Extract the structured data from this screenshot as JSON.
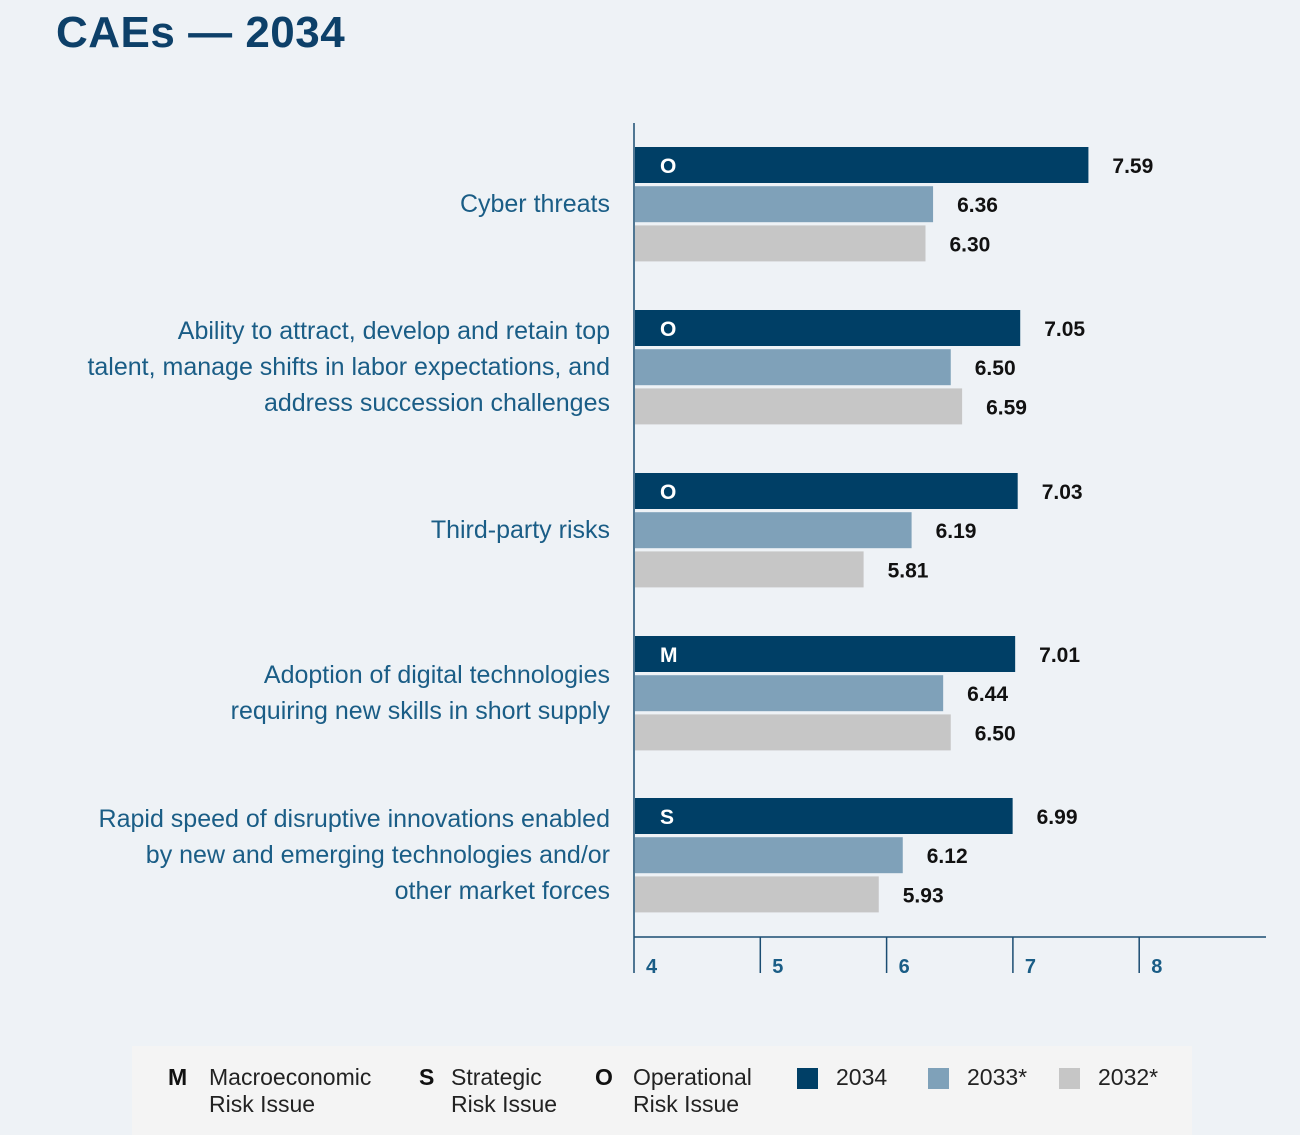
{
  "title": "CAEs — 2034",
  "chart_data": {
    "type": "bar",
    "orientation": "horizontal",
    "title": "CAEs — 2034",
    "xlim": [
      4,
      9
    ],
    "xticks": [
      "4",
      "5",
      "6",
      "7",
      "8"
    ],
    "series_names": [
      "2034",
      "2033*",
      "2032*"
    ],
    "series_colors": [
      "#003f66",
      "#7fa1b9",
      "#c6c6c6"
    ],
    "categories": [
      {
        "label": [
          "Cyber threats"
        ],
        "type": "O",
        "values": [
          7.59,
          6.36,
          6.3
        ],
        "labels": [
          "7.59",
          "6.36",
          "6.30"
        ]
      },
      {
        "label": [
          "Ability to attract, develop and retain top",
          "talent, manage shifts in labor expectations, and",
          "address succession challenges"
        ],
        "type": "O",
        "values": [
          7.05,
          6.5,
          6.59
        ],
        "labels": [
          "7.05",
          "6.50",
          "6.59"
        ]
      },
      {
        "label": [
          "Third-party risks"
        ],
        "type": "O",
        "values": [
          7.03,
          6.19,
          5.81
        ],
        "labels": [
          "7.03",
          "6.19",
          "5.81"
        ]
      },
      {
        "label": [
          "Adoption of digital technologies",
          "requiring new skills in short supply"
        ],
        "type": "M",
        "values": [
          7.01,
          6.44,
          6.5
        ],
        "labels": [
          "7.01",
          "6.44",
          "6.50"
        ]
      },
      {
        "label": [
          "Rapid speed of disruptive innovations enabled",
          "by new and emerging technologies and/or",
          "other market forces"
        ],
        "type": "S",
        "values": [
          6.99,
          6.12,
          5.93
        ],
        "labels": [
          "6.99",
          "6.12",
          "5.93"
        ]
      }
    ]
  },
  "legend": {
    "risk_types": [
      {
        "key": "M",
        "line1": "Macroeconomic",
        "line2": "Risk Issue"
      },
      {
        "key": "S",
        "line1": "Strategic",
        "line2": "Risk Issue"
      },
      {
        "key": "O",
        "line1": "Operational",
        "line2": "Risk Issue"
      }
    ],
    "series": [
      {
        "label": "2034",
        "color": "#003f66"
      },
      {
        "label": "2033*",
        "color": "#7fa1b9"
      },
      {
        "label": "2032*",
        "color": "#c6c6c6"
      }
    ]
  }
}
